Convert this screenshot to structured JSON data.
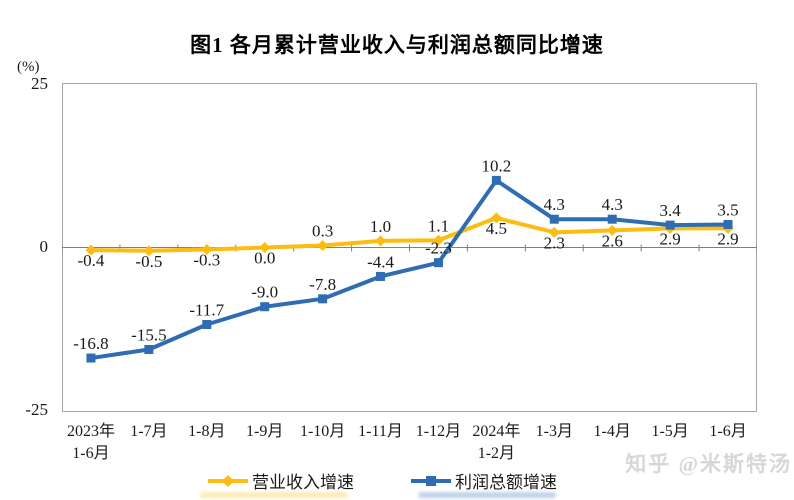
{
  "chart_data": {
    "type": "line",
    "title": "图1  各月累计营业收入与利润总额同比增速",
    "y_unit": "(%)",
    "ylim": [
      -25,
      25
    ],
    "y_ticks": [
      "25",
      "0",
      "-25"
    ],
    "grid": false,
    "legend_position": "bottom",
    "categories": [
      "2023年\n1-6月",
      "1-7月",
      "1-8月",
      "1-9月",
      "1-10月",
      "1-11月",
      "1-12月",
      "2024年\n1-2月",
      "1-3月",
      "1-4月",
      "1-5月",
      "1-6月"
    ],
    "series": [
      {
        "name": "营业收入增速",
        "color": "#FCBD10",
        "marker": "diamond",
        "values": [
          -0.4,
          -0.5,
          -0.3,
          0.0,
          0.3,
          1.0,
          1.1,
          4.5,
          2.3,
          2.6,
          2.9,
          2.9
        ],
        "label_positions": [
          "below",
          "below",
          "below",
          "below",
          "above",
          "above",
          "above",
          "below",
          "below",
          "below",
          "below",
          "below"
        ]
      },
      {
        "name": "利润总额增速",
        "color": "#2E6DB4",
        "marker": "square",
        "values": [
          -16.8,
          -15.5,
          -11.7,
          -9.0,
          -7.8,
          -4.4,
          -2.3,
          10.2,
          4.3,
          4.3,
          3.4,
          3.5
        ],
        "label_positions": [
          "above",
          "above",
          "above",
          "above",
          "above",
          "above",
          "above",
          "above",
          "above",
          "above",
          "above",
          "above"
        ]
      }
    ]
  },
  "watermark": {
    "text": "知乎 @米斯特汤"
  },
  "colors": {
    "axis": "#808080",
    "plot_border": "#a6a6a6",
    "label_text": "#1a1a1a"
  }
}
